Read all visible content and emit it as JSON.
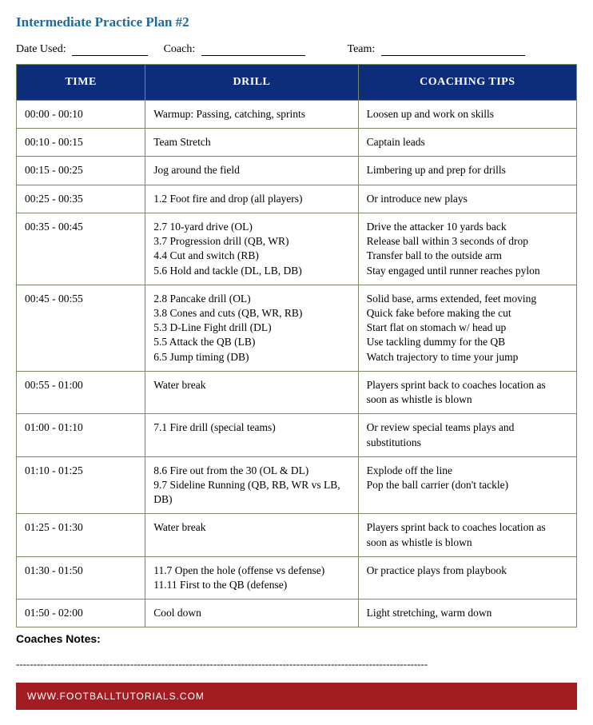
{
  "title": "Intermediate Practice Plan #2",
  "form": {
    "date_label": "Date Used:",
    "coach_label": "Coach:",
    "team_label": "Team:"
  },
  "table": {
    "headers": {
      "time": "TIME",
      "drill": "DRILL",
      "tips": "COACHING TIPS"
    },
    "rows": [
      {
        "time": "00:00 - 00:10",
        "drill": [
          "Warmup: Passing, catching, sprints"
        ],
        "tips": [
          "Loosen up and work on skills"
        ]
      },
      {
        "time": "00:10 - 00:15",
        "drill": [
          "Team Stretch"
        ],
        "tips": [
          "Captain leads"
        ]
      },
      {
        "time": "00:15 - 00:25",
        "drill": [
          "Jog around the field"
        ],
        "tips": [
          "Limbering up and prep for drills"
        ]
      },
      {
        "time": "00:25 - 00:35",
        "drill": [
          "1.2 Foot fire and drop (all players)"
        ],
        "tips": [
          "Or introduce new plays"
        ]
      },
      {
        "time": "00:35 - 00:45",
        "drill": [
          "2.7 10-yard drive (OL)",
          "3.7 Progression drill (QB, WR)",
          "4.4 Cut and switch (RB)",
          "5.6 Hold and tackle (DL, LB, DB)"
        ],
        "tips": [
          "Drive the attacker 10 yards back",
          "Release ball within 3 seconds of drop",
          "Transfer ball to the outside arm",
          "Stay engaged until runner reaches pylon"
        ]
      },
      {
        "time": "00:45 - 00:55",
        "drill": [
          "2.8 Pancake drill (OL)",
          "3.8 Cones and cuts (QB, WR, RB)",
          "5.3 D-Line Fight drill (DL)",
          "5.5 Attack the QB (LB)",
          "6.5 Jump timing (DB)"
        ],
        "tips": [
          "Solid base, arms extended, feet moving",
          "Quick fake before making the cut",
          "Start flat on stomach w/ head up",
          "Use tackling dummy for the QB",
          "Watch trajectory to time your jump"
        ]
      },
      {
        "time": "00:55 - 01:00",
        "drill": [
          "Water break"
        ],
        "tips": [
          "Players sprint back to coaches location as soon as whistle is blown"
        ]
      },
      {
        "time": "01:00 - 01:10",
        "drill": [
          "7.1 Fire drill (special teams)"
        ],
        "tips": [
          "Or review special teams plays and substitutions"
        ]
      },
      {
        "time": "01:10 - 01:25",
        "drill": [
          "8.6 Fire out from the 30 (OL & DL)",
          "9.7 Sideline Running (QB, RB, WR vs LB, DB)"
        ],
        "tips": [
          "Explode off the line",
          "Pop the ball carrier (don't tackle)"
        ]
      },
      {
        "time": "01:25 - 01:30",
        "drill": [
          "Water break"
        ],
        "tips": [
          "Players sprint back to coaches location as soon as whistle is blown"
        ]
      },
      {
        "time": "01:30 - 01:50",
        "drill": [
          "11.7 Open the hole (offense vs defense)",
          "11.11 First to the QB (defense)"
        ],
        "tips": [
          "Or practice plays from playbook"
        ]
      },
      {
        "time": "01:50 - 02:00",
        "drill": [
          "Cool down"
        ],
        "tips": [
          "Light stretching, warm down"
        ]
      }
    ]
  },
  "notes_label": "Coaches Notes:",
  "footer": "WWW.FOOTBALLTUTORIALS.COM",
  "colors": {
    "title": "#1f6a9a",
    "header_bg": "#0d2c7a",
    "header_fg": "#ffffff",
    "border": "#7a8a68",
    "footer_bg": "#a21d22",
    "footer_fg": "#ffffff"
  }
}
